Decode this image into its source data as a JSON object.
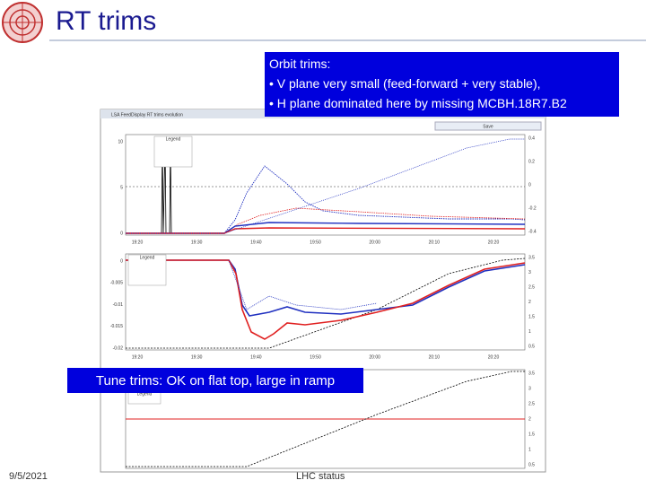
{
  "header": {
    "title": "RT trims"
  },
  "callouts": {
    "orbit": {
      "heading": "Orbit trims:",
      "bullets": [
        "• V plane very small (feed-forward + very stable),",
        "• H plane dominated here by missing MCBH.18R7.B2"
      ]
    },
    "tune": "Tune trims: OK on flat top, large in ramp"
  },
  "screenshot": {
    "window_title": "LSA FeedDisplay RT trims evolution",
    "save_button": "Save",
    "panels": [
      {
        "legend": "Legend",
        "x_ticks": [
          "19:20",
          "19:30",
          "19:40",
          "19:50",
          "20:00",
          "20:10",
          "20:20"
        ],
        "y_ticks": [
          "10",
          "5",
          "0"
        ],
        "y2_ticks": [
          "0.4",
          "0.2",
          "0",
          "-0.2",
          "-0.4"
        ]
      },
      {
        "legend": "Legend",
        "x_ticks": [
          "19:20",
          "19:30",
          "19:40",
          "19:50",
          "20:00",
          "20:10",
          "20:20"
        ],
        "y_ticks": [
          "0",
          "-0.005",
          "-0.01",
          "-0.015",
          "-0.02"
        ],
        "y2_ticks": [
          "3.5",
          "3",
          "2.5",
          "2",
          "1.5",
          "1",
          "0.5"
        ]
      },
      {
        "legend": "Legend",
        "x_ticks": [],
        "y_ticks": [],
        "y2_ticks": [
          "3.5",
          "3",
          "2.5",
          "2",
          "1.5",
          "1",
          "0.5"
        ]
      }
    ]
  },
  "footer": {
    "date": "9/5/2021",
    "center": "LHC status"
  }
}
